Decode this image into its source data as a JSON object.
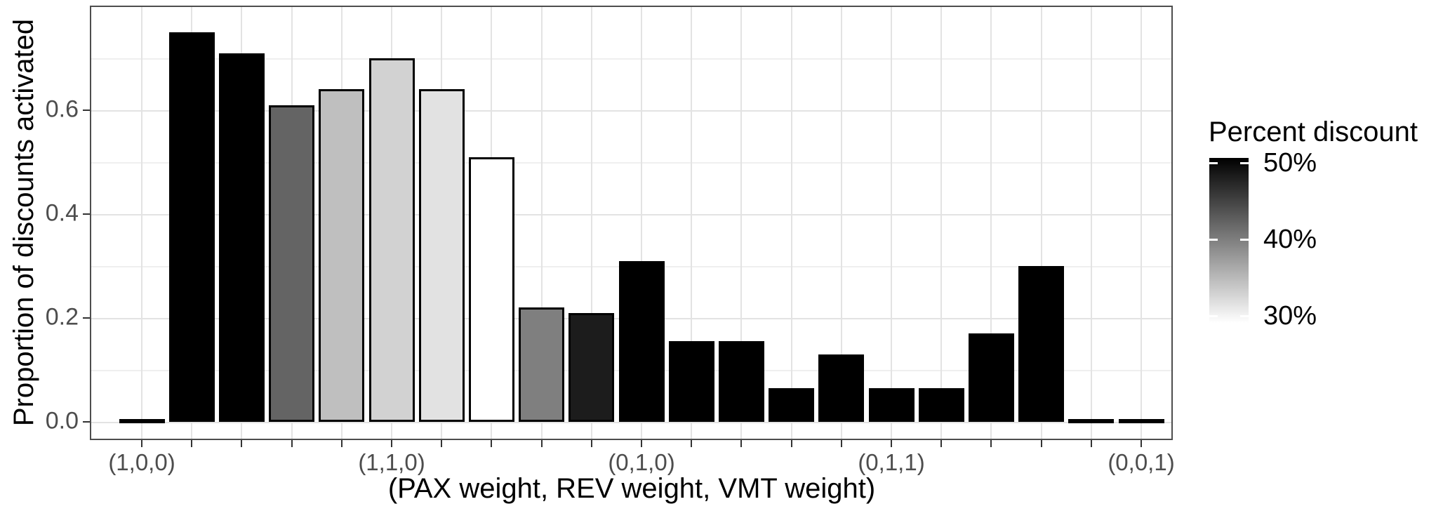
{
  "chart_data": {
    "type": "bar",
    "title": "",
    "xlabel": "(PAX weight, REV weight, VMT weight)",
    "ylabel": "Proportion of discounts activated",
    "grid": true,
    "legend_position": "right",
    "ylim": [
      -0.035,
      0.8
    ],
    "y_ticks": [
      0.0,
      0.2,
      0.4,
      0.6
    ],
    "y_minor_ticks": [
      0.1,
      0.3,
      0.5,
      0.7
    ],
    "x_tick_labels": [
      "(1,0,0)",
      "(1,1,0)",
      "(0,1,0)",
      "(0,1,1)",
      "(0,0,1)"
    ],
    "x_tick_bar_indices": [
      1,
      6,
      11,
      16,
      21
    ],
    "bars": [
      {
        "index": 1,
        "value": 0.002,
        "fill": "#000000",
        "percent_discount_approx": 50
      },
      {
        "index": 2,
        "value": 0.75,
        "fill": "#000000",
        "percent_discount_approx": 50
      },
      {
        "index": 3,
        "value": 0.71,
        "fill": "#000000",
        "percent_discount_approx": 50
      },
      {
        "index": 4,
        "value": 0.61,
        "fill": "#646464",
        "percent_discount_approx": 42
      },
      {
        "index": 5,
        "value": 0.64,
        "fill": "#bfbfbf",
        "percent_discount_approx": 35
      },
      {
        "index": 6,
        "value": 0.7,
        "fill": "#d2d2d2",
        "percent_discount_approx": 34
      },
      {
        "index": 7,
        "value": 0.64,
        "fill": "#e2e2e2",
        "percent_discount_approx": 32
      },
      {
        "index": 8,
        "value": 0.51,
        "fill": "#ffffff",
        "percent_discount_approx": 30
      },
      {
        "index": 9,
        "value": 0.22,
        "fill": "#7f7f7f",
        "percent_discount_approx": 40
      },
      {
        "index": 10,
        "value": 0.21,
        "fill": "#1c1c1c",
        "percent_discount_approx": 48
      },
      {
        "index": 11,
        "value": 0.31,
        "fill": "#000000",
        "percent_discount_approx": 50
      },
      {
        "index": 12,
        "value": 0.155,
        "fill": "#000000",
        "percent_discount_approx": 50
      },
      {
        "index": 13,
        "value": 0.155,
        "fill": "#000000",
        "percent_discount_approx": 50
      },
      {
        "index": 14,
        "value": 0.065,
        "fill": "#000000",
        "percent_discount_approx": 50
      },
      {
        "index": 15,
        "value": 0.13,
        "fill": "#000000",
        "percent_discount_approx": 50
      },
      {
        "index": 16,
        "value": 0.065,
        "fill": "#000000",
        "percent_discount_approx": 50
      },
      {
        "index": 17,
        "value": 0.065,
        "fill": "#000000",
        "percent_discount_approx": 50
      },
      {
        "index": 18,
        "value": 0.17,
        "fill": "#000000",
        "percent_discount_approx": 50
      },
      {
        "index": 19,
        "value": 0.3,
        "fill": "#000000",
        "percent_discount_approx": 50
      },
      {
        "index": 20,
        "value": 0.002,
        "fill": "#000000",
        "percent_discount_approx": 50
      },
      {
        "index": 21,
        "value": 0.002,
        "fill": "#000000",
        "percent_discount_approx": 50
      }
    ],
    "legend": {
      "title": "Percent discount",
      "tick_labels": [
        "50%",
        "40%",
        "30%"
      ],
      "gradient_top": "#000000",
      "gradient_bottom": "#ffffff"
    },
    "colors": {
      "bar_stroke": "#000000",
      "tick_label": "#4d4d4d",
      "axis_title": "#000000",
      "grid_major": "#e3e3e3",
      "grid_minor": "#efefef",
      "panel_border": "#4d4d4d",
      "background": "#ffffff"
    }
  }
}
